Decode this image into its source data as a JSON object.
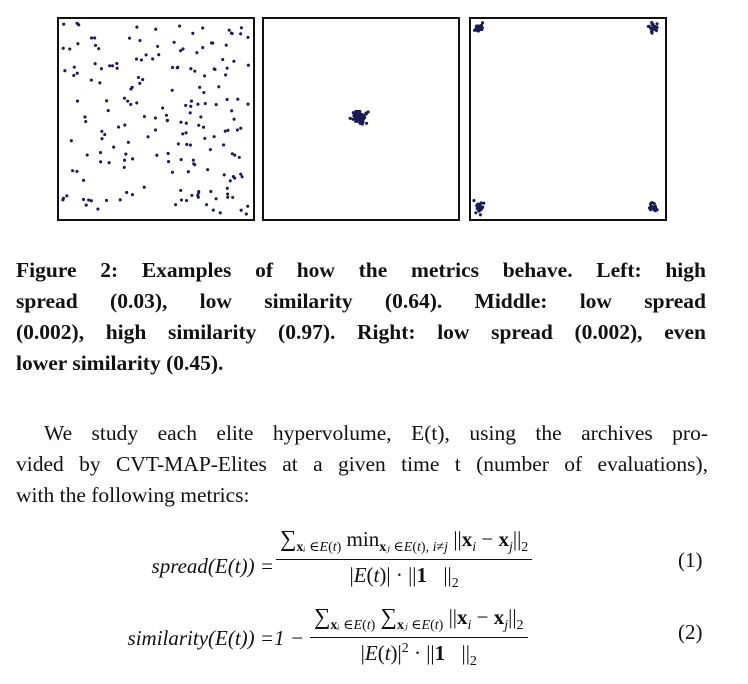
{
  "figure": {
    "panels": [
      {
        "id": "left",
        "dot_color": "#1b1b55"
      },
      {
        "id": "middle",
        "dot_color": "#1b1b55"
      },
      {
        "id": "right",
        "dot_color": "#1b1b55"
      }
    ]
  },
  "caption": {
    "line1": "Figure 2: Examples of how the metrics behave. Left: high",
    "line2": "spread (0.03), low similarity (0.64). Middle: low spread",
    "line3": "(0.002), high similarity (0.97). Right: low spread (0.002), even",
    "line4": "lower similarity (0.45)."
  },
  "paragraph": {
    "line1": "We study each elite hypervolume, E(t), using the archives pro-",
    "line2": "vided by CVT-MAP-Elites at a given time t (number of evaluations),",
    "line3": "with the following metrics:"
  },
  "equations": {
    "eq1": {
      "lhs": "spread(E(t)) =",
      "number": "(1)"
    },
    "eq2": {
      "lhs": "similarity(E(t)) =1 −",
      "number": "(2)"
    }
  }
}
